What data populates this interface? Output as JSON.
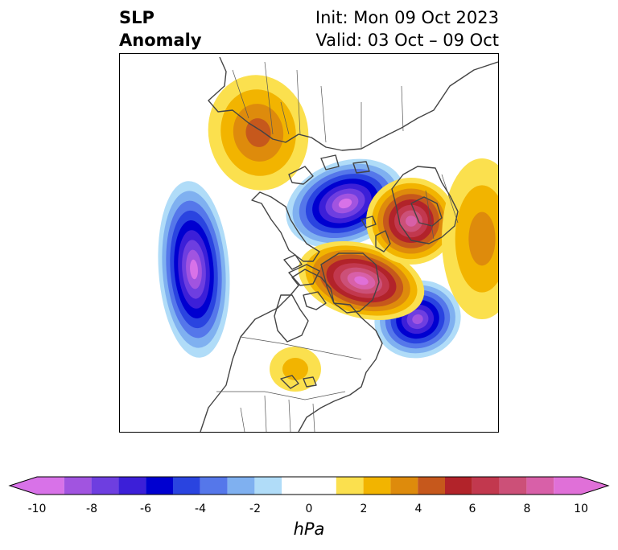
{
  "title": {
    "left_line1": "SLP",
    "left_line2": "Anomaly",
    "right_line1": "Init: Mon 09 Oct 2023",
    "right_line2": "Valid: 03 Oct – 09 Oct"
  },
  "map": {
    "projection": "north-polar-stereographic",
    "field": "sea level pressure anomaly",
    "features": [
      "coastlines",
      "country borders",
      "state/province borders"
    ],
    "anomaly_centers": [
      {
        "kind": "negative",
        "region": "North Pacific",
        "peak_hPa": -9
      },
      {
        "kind": "negative",
        "region": "Arctic / East Siberian Sea",
        "peak_hPa": -9
      },
      {
        "kind": "negative",
        "region": "North Atlantic",
        "peak_hPa": -8
      },
      {
        "kind": "positive",
        "region": "Greenland / Baffin Bay",
        "peak_hPa": 9
      },
      {
        "kind": "positive",
        "region": "Scandinavia / Northern Europe",
        "peak_hPa": 8
      },
      {
        "kind": "positive",
        "region": "Central Asia",
        "peak_hPa": 4
      },
      {
        "kind": "positive",
        "region": "Eastern Siberia",
        "peak_hPa": 3
      },
      {
        "kind": "positive",
        "region": "Central United States",
        "peak_hPa": 2
      }
    ]
  },
  "colorbar": {
    "ticks": [
      "-10",
      "-8",
      "-6",
      "-4",
      "-2",
      "0",
      "2",
      "4",
      "6",
      "8",
      "10"
    ],
    "unit": "hPa",
    "extend": "both",
    "levels": [
      -10,
      -9,
      -8,
      -7,
      -6,
      -5,
      -4,
      -3,
      -2,
      -1,
      1,
      2,
      3,
      4,
      5,
      6,
      7,
      8,
      9,
      10
    ],
    "colors": [
      "#d872e8",
      "#a154e0",
      "#6e3ee0",
      "#3c1fd8",
      "#0000d0",
      "#2a44e0",
      "#5577ea",
      "#7fb0f0",
      "#b0dcf8",
      "#ffffff",
      "#fbe04e",
      "#f2b400",
      "#de8b0c",
      "#c6581c",
      "#b2232a",
      "#c2384e",
      "#cc5078",
      "#d860a8",
      "#e070d8"
    ],
    "extend_min_color": "#d872e8",
    "extend_max_color": "#e070d8"
  }
}
